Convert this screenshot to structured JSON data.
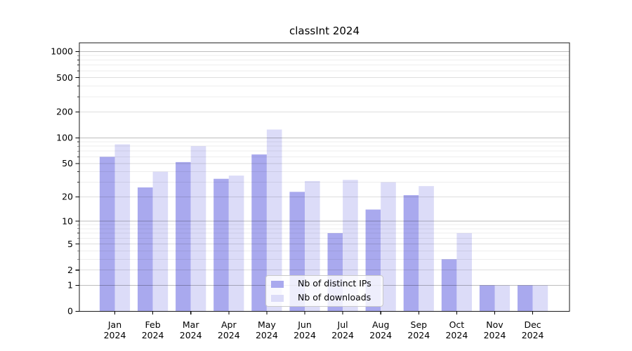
{
  "chart_data": {
    "type": "bar",
    "title": "classInt 2024",
    "year": "2024",
    "categories": [
      "Jan",
      "Feb",
      "Mar",
      "Apr",
      "May",
      "Jun",
      "Jul",
      "Aug",
      "Sep",
      "Oct",
      "Nov",
      "Dec"
    ],
    "series": [
      {
        "name": "Nb of distinct IPs",
        "color": "#a9a9ee",
        "values": [
          60,
          26,
          52,
          33,
          64,
          23,
          7,
          14,
          21,
          3,
          1,
          1
        ]
      },
      {
        "name": "Nb of downloads",
        "color": "#dcdcf8",
        "values": [
          84,
          40,
          80,
          36,
          125,
          31,
          32,
          30,
          27,
          7,
          1,
          1
        ]
      }
    ],
    "xlabel": "",
    "ylabel": "",
    "y_scale": "log1p",
    "ylim": [
      0,
      1260
    ],
    "y_ticks": [
      0,
      1,
      2,
      5,
      10,
      20,
      50,
      100,
      200,
      500,
      1000
    ],
    "y_mid_ticks": [
      2,
      5,
      20,
      50,
      200,
      500
    ],
    "y_minor_ticks": [
      3,
      4,
      6,
      7,
      8,
      9,
      30,
      40,
      60,
      70,
      80,
      90,
      300,
      400,
      600,
      700,
      800,
      900
    ],
    "grid": true,
    "legend_position": "lower center"
  }
}
